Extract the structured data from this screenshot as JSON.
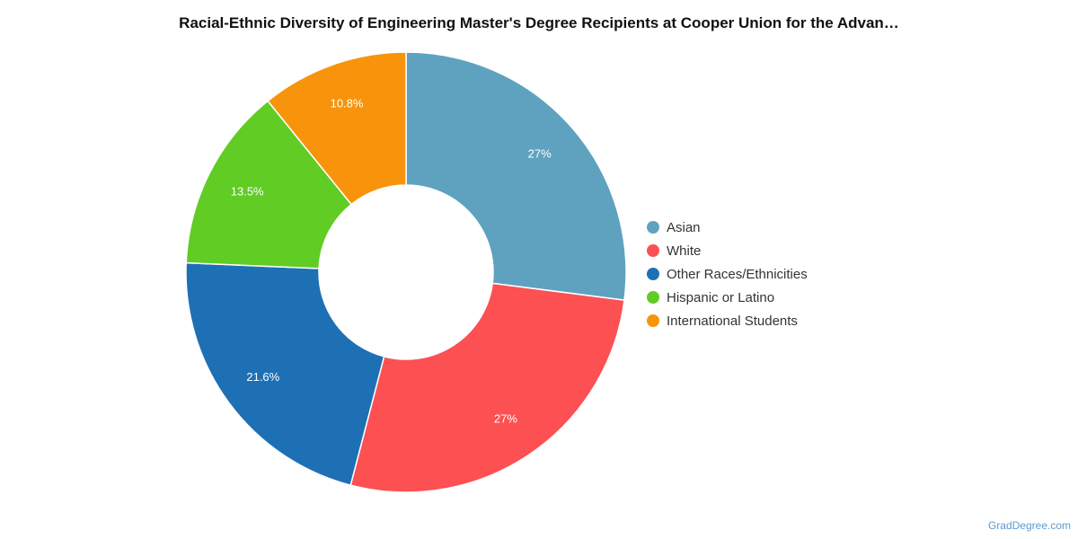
{
  "chart_data": {
    "type": "pie",
    "title": "Racial-Ethnic Diversity of Engineering Master's Degree Recipients at Cooper Union for the Advan…",
    "donut": true,
    "legend_position": "right",
    "slices": [
      {
        "name": "Asian",
        "value": 27,
        "label": "27%",
        "color": "#5ea2c0"
      },
      {
        "name": "White",
        "value": 27,
        "label": "27%",
        "color": "#fc5052"
      },
      {
        "name": "Other Races/Ethnicities",
        "value": 21.6,
        "label": "21.6%",
        "color": "#1e70b5"
      },
      {
        "name": "Hispanic or Latino",
        "value": 13.5,
        "label": "13.5%",
        "color": "#60cc24"
      },
      {
        "name": "International Students",
        "value": 10.8,
        "label": "10.8%",
        "color": "#f8940c"
      }
    ]
  },
  "watermark": "GradDegree.com"
}
